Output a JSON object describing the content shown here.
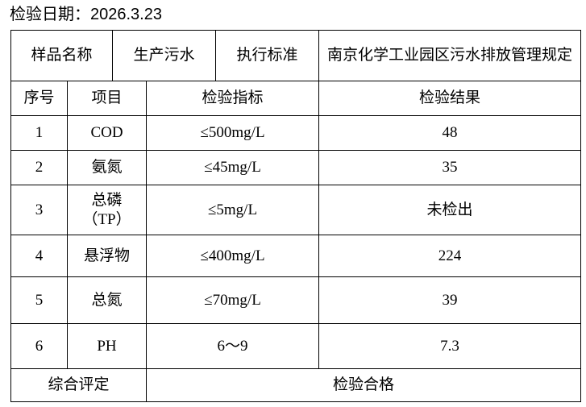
{
  "date_label": "检验日期：2026.3.23",
  "table": {
    "header": [
      "样品名称",
      "生产污水",
      "执行标准",
      "南京化学工业园区污水排放管理规定"
    ],
    "columns": [
      "序号",
      "项目",
      "检验指标",
      "检验结果"
    ],
    "rows": [
      [
        1,
        "COD",
        "≤500mg/L",
        48
      ],
      [
        2,
        "氨氮",
        "≤45mg/L",
        35
      ],
      [
        3,
        "总磷\n（TP）",
        "≤5mg/L",
        "未检出"
      ],
      [
        4,
        "悬浮物",
        "≤400mg/L",
        224
      ],
      [
        5,
        "总氮",
        "≤70mg/L",
        39
      ],
      [
        6,
        "PH",
        "6～9",
        7.3
      ]
    ],
    "footer": [
      "综合评定",
      "检验合格"
    ]
  }
}
